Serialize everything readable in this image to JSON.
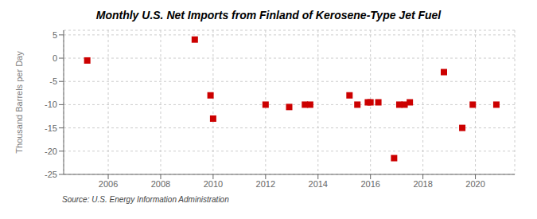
{
  "chart_data": {
    "type": "scatter",
    "title": "Monthly U.S. Net Imports from Finland of Kerosene-Type Jet Fuel",
    "ylabel": "Thousand Barrels per Day",
    "annotations": [
      "Source: U.S. Energy Information Administration"
    ],
    "x": [
      2005.2,
      2009.3,
      2009.9,
      2010.0,
      2012.0,
      2012.9,
      2013.5,
      2013.7,
      2015.2,
      2015.5,
      2015.9,
      2016.0,
      2016.3,
      2016.9,
      2017.1,
      2017.3,
      2017.5,
      2018.8,
      2019.5,
      2019.9,
      2020.8
    ],
    "values": [
      -0.5,
      4.0,
      -8.0,
      -13.0,
      -10.0,
      -10.5,
      -10.0,
      -10.0,
      -8.0,
      -10.0,
      -9.5,
      -9.5,
      -9.5,
      -21.5,
      -10.0,
      -10.0,
      -9.5,
      -3.0,
      -15.0,
      -10.0,
      -10.0
    ],
    "color": "#cc0000",
    "marker": "square",
    "xlim": [
      2004.3,
      2021.5
    ],
    "ylim": [
      -25,
      6
    ],
    "xticks": [
      2006,
      2008,
      2010,
      2012,
      2014,
      2016,
      2018,
      2020
    ],
    "yticks": [
      5,
      0,
      -5,
      -10,
      -15,
      -20,
      -25
    ],
    "grid": true
  }
}
